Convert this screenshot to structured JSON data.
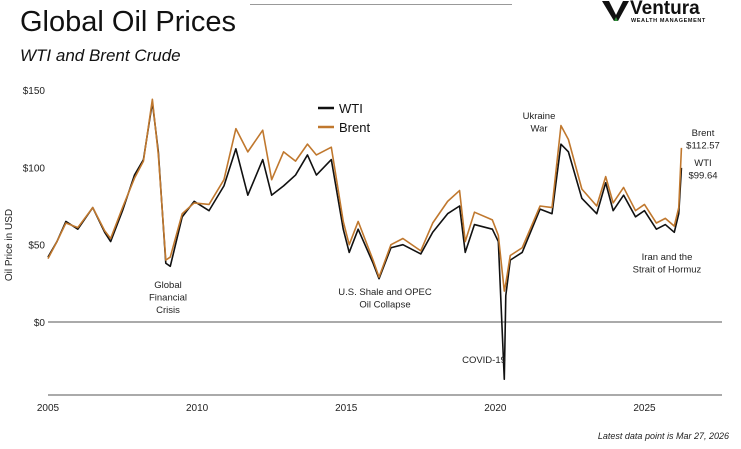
{
  "header": {
    "title": "Global Oil Prices",
    "subtitle": "WTI and Brent Crude"
  },
  "logo": {
    "name": "Ventura",
    "tagline": "WEALTH MANAGEMENT"
  },
  "footer": {
    "note": "Latest data point is Mar 27, 2026"
  },
  "colors": {
    "wti": "#111111",
    "brent": "#c0782e",
    "axis": "#888888"
  },
  "chart_data": {
    "type": "line",
    "title": "Global Oil Prices",
    "subtitle": "WTI and Brent Crude",
    "xlabel": "",
    "ylabel": "Oil Price in USD",
    "xlim": [
      2005,
      2027.6
    ],
    "ylim": [
      -47,
      150
    ],
    "yticks": [
      {
        "v": 150,
        "label": "$150"
      },
      {
        "v": 100,
        "label": "$100"
      },
      {
        "v": 50,
        "label": "$50"
      },
      {
        "v": 0,
        "label": "$0"
      }
    ],
    "xticks": [
      {
        "v": 2005,
        "label": "2005"
      },
      {
        "v": 2010,
        "label": "2010"
      },
      {
        "v": 2015,
        "label": "2015"
      },
      {
        "v": 2020,
        "label": "2020"
      },
      {
        "v": 2025,
        "label": "2025"
      }
    ],
    "legend": {
      "position": "top-center",
      "entries": [
        {
          "name": "WTI",
          "color": "#111111"
        },
        {
          "name": "Brent",
          "color": "#c0782e"
        }
      ]
    },
    "series_columns": [
      "year",
      "WTI",
      "Brent"
    ],
    "points": [
      [
        2005.0,
        42,
        41
      ],
      [
        2005.3,
        52,
        52
      ],
      [
        2005.6,
        65,
        64
      ],
      [
        2006.0,
        60,
        61
      ],
      [
        2006.5,
        74,
        74
      ],
      [
        2006.9,
        58,
        59
      ],
      [
        2007.1,
        52,
        54
      ],
      [
        2007.5,
        72,
        74
      ],
      [
        2007.9,
        95,
        93
      ],
      [
        2008.2,
        105,
        104
      ],
      [
        2008.5,
        142,
        144
      ],
      [
        2008.7,
        110,
        108
      ],
      [
        2008.95,
        38,
        40
      ],
      [
        2009.1,
        36,
        42
      ],
      [
        2009.5,
        68,
        70
      ],
      [
        2009.9,
        78,
        77
      ],
      [
        2010.4,
        72,
        76
      ],
      [
        2010.9,
        88,
        92
      ],
      [
        2011.3,
        112,
        125
      ],
      [
        2011.7,
        82,
        110
      ],
      [
        2012.2,
        105,
        124
      ],
      [
        2012.5,
        82,
        92
      ],
      [
        2012.9,
        88,
        110
      ],
      [
        2013.3,
        95,
        104
      ],
      [
        2013.7,
        108,
        115
      ],
      [
        2014.0,
        95,
        108
      ],
      [
        2014.5,
        105,
        113
      ],
      [
        2014.9,
        60,
        65
      ],
      [
        2015.1,
        45,
        50
      ],
      [
        2015.4,
        60,
        65
      ],
      [
        2015.9,
        38,
        40
      ],
      [
        2016.1,
        28,
        29
      ],
      [
        2016.5,
        48,
        50
      ],
      [
        2016.9,
        50,
        54
      ],
      [
        2017.5,
        44,
        46
      ],
      [
        2017.9,
        58,
        64
      ],
      [
        2018.4,
        70,
        78
      ],
      [
        2018.8,
        75,
        85
      ],
      [
        2018.99,
        45,
        52
      ],
      [
        2019.3,
        63,
        71
      ],
      [
        2019.9,
        60,
        66
      ],
      [
        2020.1,
        52,
        56
      ],
      [
        2020.3,
        -37,
        20
      ],
      [
        2020.35,
        17,
        25
      ],
      [
        2020.5,
        40,
        43
      ],
      [
        2020.9,
        45,
        48
      ],
      [
        2021.5,
        73,
        75
      ],
      [
        2021.9,
        70,
        74
      ],
      [
        2022.2,
        115,
        127
      ],
      [
        2022.45,
        110,
        118
      ],
      [
        2022.9,
        80,
        86
      ],
      [
        2023.4,
        70,
        75
      ],
      [
        2023.7,
        90,
        94
      ],
      [
        2023.95,
        72,
        77
      ],
      [
        2024.3,
        82,
        87
      ],
      [
        2024.7,
        68,
        72
      ],
      [
        2025.0,
        72,
        76
      ],
      [
        2025.4,
        60,
        64
      ],
      [
        2025.7,
        63,
        67
      ],
      [
        2026.0,
        58,
        62
      ],
      [
        2026.15,
        70,
        74
      ],
      [
        2026.24,
        99.64,
        112.57
      ]
    ],
    "annotations": [
      {
        "id": "gfc",
        "lines": [
          "Global",
          "Financial",
          "Crisis"
        ]
      },
      {
        "id": "shale",
        "lines": [
          "U.S. Shale and OPEC",
          "Oil Collapse"
        ]
      },
      {
        "id": "covid",
        "lines": [
          "COVID-19"
        ]
      },
      {
        "id": "ukraine",
        "lines": [
          "Ukraine",
          "War"
        ]
      },
      {
        "id": "iran",
        "lines": [
          "Iran and the",
          "Strait of Hormuz"
        ]
      },
      {
        "id": "brent_last",
        "lines": [
          "Brent",
          "$112.57"
        ]
      },
      {
        "id": "wti_last",
        "lines": [
          "WTI",
          "$99.64"
        ]
      }
    ]
  }
}
